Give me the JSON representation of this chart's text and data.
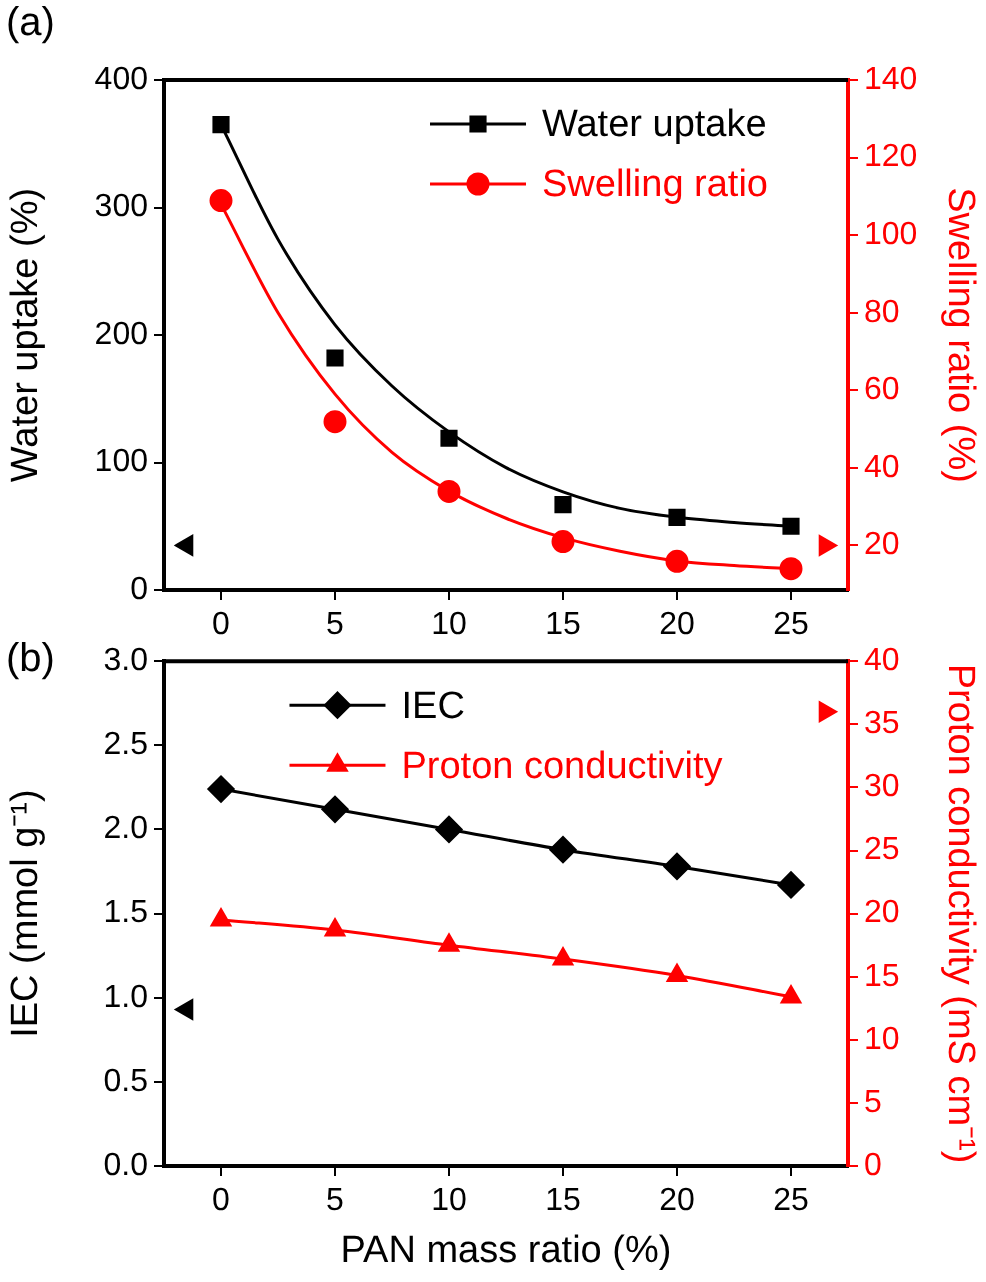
{
  "chart_data": [
    {
      "type": "line",
      "title": "(a)",
      "ylabel": "Water uptake (%)",
      "y2label": "Swelling ratio (%)",
      "x": [
        0,
        5,
        10,
        15,
        20,
        25
      ],
      "xlim": [
        -2.5,
        27.5
      ],
      "xticks": [
        0,
        5,
        10,
        15,
        20,
        25
      ],
      "ylim": [
        0,
        400
      ],
      "yticks": [
        0,
        100,
        200,
        300,
        400
      ],
      "y2lim": [
        8.5,
        140
      ],
      "y2ticks": [
        20,
        40,
        60,
        80,
        100,
        120,
        140
      ],
      "grid": false,
      "legend": "top right",
      "series": [
        {
          "name": "Water uptake",
          "type": "scatter",
          "marker": "square",
          "color": "#000000",
          "values": [
            365,
            182,
            119,
            67,
            57,
            50
          ]
        },
        {
          "name": "Swelling ratio",
          "type": "scatter",
          "marker": "circle",
          "color": "#ff0000",
          "axis": "y2",
          "values": [
            108.9,
            51.9,
            33.9,
            21,
            15.9,
            14
          ]
        },
        {
          "type": "line",
          "marker": "none",
          "color": "#000000",
          "x": [
            0,
            2.5,
            5,
            7.5,
            10,
            12.5,
            15,
            17.5,
            20,
            22.5,
            25
          ],
          "values": [
            365,
            275,
            208,
            160,
            124,
            96,
            77,
            64,
            57,
            53,
            50
          ]
        },
        {
          "type": "line",
          "marker": "none",
          "color": "#ff0000",
          "axis": "y2",
          "x": [
            0,
            2.5,
            5,
            7.5,
            10,
            12.5,
            15,
            17.5,
            20,
            22.5,
            25
          ],
          "values": [
            108,
            80,
            59,
            44,
            34,
            27,
            22,
            18.5,
            16,
            14.8,
            14
          ]
        },
        {
          "type": "scatter",
          "marker": "triangle",
          "color": "#000000",
          "x": [
            -1.5
          ],
          "values": [
            35
          ]
        },
        {
          "type": "scatter",
          "marker": "triangle",
          "color": "#ff0000",
          "axis": "y2",
          "x": [
            26.5
          ],
          "values": [
            20
          ]
        }
      ]
    },
    {
      "type": "line",
      "title": "(b)",
      "xlabel": "PAN mass ratio (%)",
      "ylabel": "IEC (mmol g⁻¹)",
      "y2label": "Proton conductivity (mS cm⁻¹)",
      "x": [
        0,
        5,
        10,
        15,
        20,
        25
      ],
      "xlim": [
        -2.5,
        27.5
      ],
      "xticks": [
        0,
        5,
        10,
        15,
        20,
        25
      ],
      "ylim": [
        0,
        3
      ],
      "yticks": [
        {
          "value": 0,
          "label": "0.0"
        },
        {
          "value": 0.5,
          "label": "0.5"
        },
        {
          "value": 1,
          "label": "1.0"
        },
        {
          "value": 1.5,
          "label": "1.5"
        },
        {
          "value": 2,
          "label": "2.0"
        },
        {
          "value": 2.5,
          "label": "2.5"
        },
        {
          "value": 3,
          "label": "3.0"
        }
      ],
      "y2lim": [
        0,
        40
      ],
      "y2ticks": [
        0,
        5,
        10,
        15,
        20,
        25,
        30,
        35,
        40
      ],
      "grid": false,
      "legend": "top",
      "series": [
        {
          "name": "IEC",
          "marker": "diamond",
          "color": "#000000",
          "values": [
            2.24,
            2.12,
            2,
            1.88,
            1.78,
            1.67
          ]
        },
        {
          "name": "Proton conductivity",
          "marker": "triangle",
          "color": "#ff0000",
          "axis": "y2",
          "values": [
            19.5,
            18.7,
            17.5,
            16.4,
            15.1,
            13.4
          ]
        },
        {
          "type": "scatter",
          "marker": "triangle",
          "color": "#000000",
          "x": [
            -1.5
          ],
          "values": [
            0.93
          ]
        },
        {
          "type": "scatter",
          "marker": "triangle",
          "color": "#ff0000",
          "axis": "y2",
          "x": [
            26.5
          ],
          "values": [
            36
          ]
        }
      ]
    }
  ]
}
